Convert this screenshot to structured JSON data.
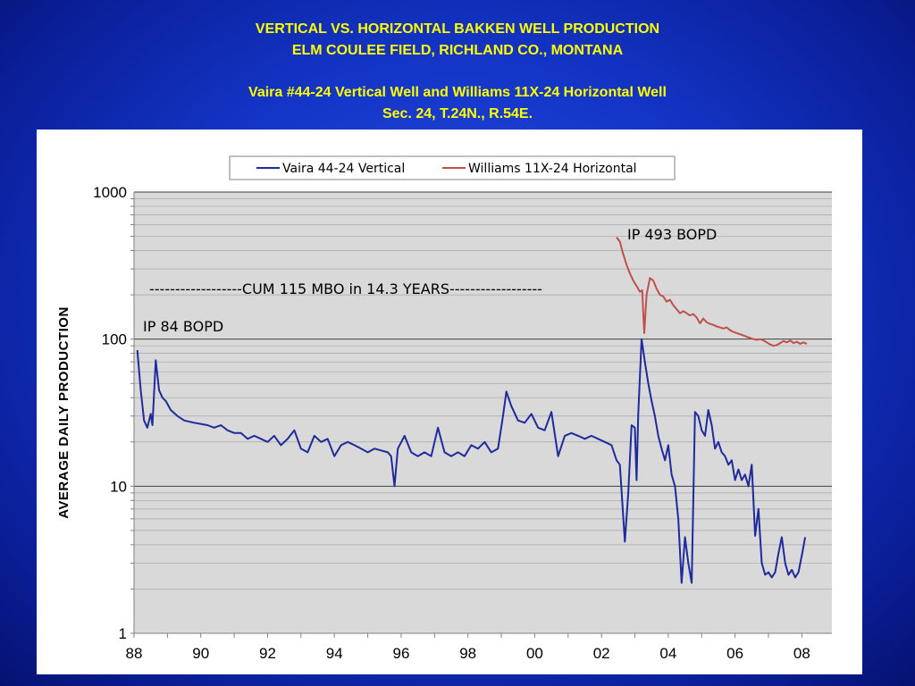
{
  "slide": {
    "title_line1": "VERTICAL VS. HORIZONTAL  BAKKEN WELL PRODUCTION",
    "title_line2": "ELM COULEE FIELD, RICHLAND CO., MONTANA",
    "title_line3": "Vaira #44-24 Vertical Well and Williams 11X-24 Horizontal Well",
    "title_line4": "Sec. 24, T.24N., R.54E.",
    "background_color": "#1436c8",
    "title_color": "#ffff00"
  },
  "chart_data": {
    "type": "line",
    "title": "",
    "xlabel": "",
    "ylabel": "AVERAGE  DAILY  PRODUCTION",
    "yscale": "log",
    "ylim": [
      1,
      1000
    ],
    "xlim": [
      1988,
      2008.9
    ],
    "y_tick_labels": [
      "1000",
      "100",
      "10",
      "1"
    ],
    "y_tick_values": [
      1000,
      100,
      10,
      1
    ],
    "x_tick_labels": [
      "88",
      "90",
      "92",
      "94",
      "96",
      "98",
      "00",
      "02",
      "04",
      "06",
      "08"
    ],
    "x_tick_values": [
      1988,
      1990,
      1992,
      1994,
      1996,
      1998,
      2000,
      2002,
      2004,
      2006,
      2008
    ],
    "grid": true,
    "legend_position": "top-center",
    "plot_background": "#d9d9d9",
    "annotations": [
      {
        "text": "IP 84 BOPD"
      },
      {
        "text": "------------------CUM 115 MBO in 14.3 YEARS------------------"
      },
      {
        "text": "IP 493  BOPD"
      }
    ],
    "series": [
      {
        "name": "Vaira 44-24 Vertical",
        "color": "#1f2a9c",
        "x": [
          1988.1,
          1988.2,
          1988.3,
          1988.4,
          1988.5,
          1988.55,
          1988.65,
          1988.75,
          1988.85,
          1988.95,
          1989.1,
          1989.3,
          1989.5,
          1989.8,
          1990.0,
          1990.2,
          1990.4,
          1990.6,
          1990.8,
          1991.0,
          1991.2,
          1991.4,
          1991.6,
          1991.8,
          1992.0,
          1992.2,
          1992.4,
          1992.6,
          1992.8,
          1993.0,
          1993.2,
          1993.4,
          1993.6,
          1993.8,
          1994.0,
          1994.2,
          1994.4,
          1994.6,
          1994.8,
          1995.0,
          1995.2,
          1995.4,
          1995.6,
          1995.7,
          1995.8,
          1995.9,
          1996.1,
          1996.3,
          1996.5,
          1996.7,
          1996.9,
          1997.1,
          1997.3,
          1997.5,
          1997.7,
          1997.9,
          1998.1,
          1998.3,
          1998.5,
          1998.7,
          1998.9,
          1999.05,
          1999.15,
          1999.3,
          1999.5,
          1999.7,
          1999.9,
          2000.1,
          2000.3,
          2000.5,
          2000.7,
          2000.9,
          2001.1,
          2001.3,
          2001.5,
          2001.7,
          2001.9,
          2002.1,
          2002.3,
          2002.45,
          2002.55,
          2002.7,
          2002.8,
          2002.9,
          2003.0,
          2003.05,
          2003.1,
          2003.2,
          2003.3,
          2003.4,
          2003.5,
          2003.6,
          2003.7,
          2003.8,
          2003.9,
          2004.0,
          2004.1,
          2004.2,
          2004.3,
          2004.4,
          2004.5,
          2004.6,
          2004.7,
          2004.8,
          2004.9,
          2005.0,
          2005.1,
          2005.2,
          2005.3,
          2005.4,
          2005.5,
          2005.6,
          2005.7,
          2005.8,
          2005.9,
          2006.0,
          2006.1,
          2006.2,
          2006.3,
          2006.4,
          2006.5,
          2006.6,
          2006.7,
          2006.8,
          2006.9,
          2007.0,
          2007.1,
          2007.2,
          2007.3,
          2007.4,
          2007.5,
          2007.6,
          2007.7,
          2007.8,
          2007.9,
          2008.0,
          2008.1
        ],
        "y": [
          84,
          45,
          28,
          25,
          31,
          26,
          72,
          45,
          40,
          38,
          33,
          30,
          28,
          27,
          26.5,
          26,
          25,
          26,
          24,
          23,
          23,
          21,
          22,
          21,
          20,
          22,
          19,
          21,
          24,
          18,
          17,
          22,
          20,
          21,
          16,
          19,
          20,
          19,
          18,
          17,
          18,
          17.5,
          17,
          16,
          10,
          18,
          22,
          17,
          16,
          17,
          16,
          25,
          17,
          16,
          17,
          16,
          19,
          18,
          20,
          17,
          18,
          30,
          44,
          35,
          28,
          27,
          31,
          25,
          24,
          32,
          16,
          22,
          23,
          22,
          21,
          22,
          21,
          20,
          19,
          15,
          14,
          4.2,
          9,
          26,
          25,
          11,
          31,
          100,
          70,
          50,
          38,
          30,
          22,
          18,
          15,
          19,
          12,
          10,
          6,
          2.2,
          4.5,
          3,
          2.2,
          32,
          30,
          24,
          22,
          33,
          26,
          18,
          20,
          17,
          16,
          14,
          15,
          11,
          13,
          11,
          12,
          10,
          14,
          4.6,
          7,
          3,
          2.5,
          2.6,
          2.4,
          2.6,
          3.5,
          4.5,
          3,
          2.5,
          2.7,
          2.4,
          2.6,
          3.4,
          4.5
        ],
        "markers": false
      },
      {
        "name": "Williams 11X-24 Horizontal",
        "color": "#c0504d",
        "x": [
          2002.45,
          2002.55,
          2002.65,
          2002.75,
          2002.85,
          2002.95,
          2003.05,
          2003.15,
          2003.22,
          2003.28,
          2003.35,
          2003.45,
          2003.55,
          2003.65,
          2003.75,
          2003.85,
          2003.95,
          2004.05,
          2004.15,
          2004.25,
          2004.35,
          2004.45,
          2004.55,
          2004.65,
          2004.75,
          2004.85,
          2004.95,
          2005.05,
          2005.15,
          2005.25,
          2005.35,
          2005.45,
          2005.55,
          2005.65,
          2005.75,
          2005.85,
          2005.95,
          2006.05,
          2006.15,
          2006.25,
          2006.35,
          2006.45,
          2006.55,
          2006.65,
          2006.75,
          2006.85,
          2006.95,
          2007.05,
          2007.15,
          2007.25,
          2007.35,
          2007.45,
          2007.55,
          2007.65,
          2007.75,
          2007.85,
          2007.95,
          2008.05,
          2008.15
        ],
        "y": [
          493,
          460,
          380,
          320,
          280,
          250,
          230,
          210,
          215,
          110,
          200,
          260,
          250,
          220,
          200,
          195,
          180,
          185,
          170,
          160,
          150,
          155,
          150,
          145,
          148,
          140,
          128,
          138,
          130,
          127,
          125,
          122,
          120,
          118,
          120,
          115,
          112,
          110,
          108,
          106,
          104,
          102,
          100,
          99,
          100,
          98,
          95,
          92,
          90,
          91,
          94,
          97,
          95,
          98,
          94,
          96,
          93,
          95,
          93
        ],
        "markers": false
      }
    ]
  }
}
